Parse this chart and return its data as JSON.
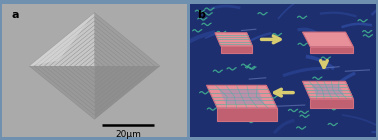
{
  "panel_a_label": "a",
  "panel_b_label": "b",
  "scalebar_text": "20μm",
  "outer_border_color": "#7090b0",
  "panel_a_bg": "#a8a8a8",
  "panel_b_bg": "#1e3070",
  "panel_b_bg2": "#253585",
  "sem_bg": "#a0a0a0",
  "crystal_outer_bright": "#e8e8e8",
  "crystal_step_dark": "#909090",
  "crystal_center": "#808080",
  "crystal_left_face": "#e0e0e0",
  "scalebar_color": "#000000",
  "label_color": "#000000",
  "label_fontsize": 8,
  "scalebar_fontsize": 6.5,
  "crystal_pink_top": "#e8909a",
  "crystal_pink_top_light": "#f0b8c0",
  "crystal_side_right": "#b05060",
  "crystal_side_front": "#c06070",
  "crystal_edge": "#d07080",
  "crystal_inner_gray": "#b0a0a8",
  "crystal_inner_blue": "#8090c0",
  "crystal_lines_teal": "#50b0a0",
  "arrow_fill": "#d8cc70",
  "arrow_edge": "#c0b050",
  "polymer_color": "#40b090",
  "ocean_line_color": "#2a4090",
  "ocean_highlight": "#3050a0",
  "fig_width": 3.78,
  "fig_height": 1.4,
  "dpi": 100
}
